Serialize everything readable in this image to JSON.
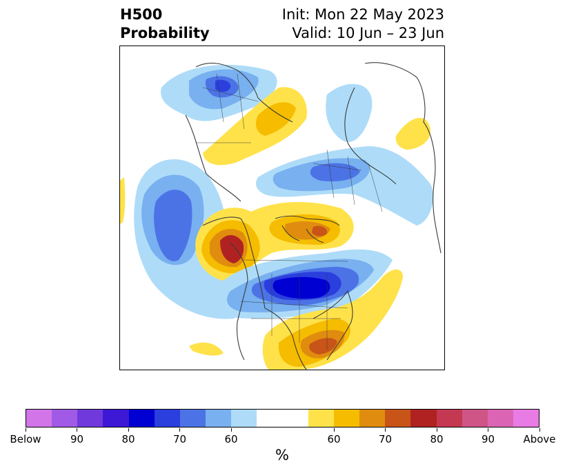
{
  "title": {
    "line1_left": "H500",
    "line2_left": "Probability",
    "line1_right": "Init: Mon 22 May 2023",
    "line2_right": "Valid: 10 Jun – 23 Jun"
  },
  "colorbar": {
    "unit": "%",
    "colors": [
      "#d275e8",
      "#a05ae6",
      "#7039dc",
      "#3d19d6",
      "#0000d2",
      "#2a3fdd",
      "#4c73e6",
      "#78b0f0",
      "#aedcf8",
      "#ffffff",
      "#ffffff",
      "#ffe24a",
      "#f5bc00",
      "#e08c0f",
      "#c85418",
      "#b02222",
      "#c43852",
      "#cf5587",
      "#dc64b4",
      "#e97be4"
    ],
    "tick_labels": [
      "Below",
      "90",
      "80",
      "70",
      "60",
      "60",
      "70",
      "80",
      "90",
      "Above"
    ]
  },
  "map": {
    "colors": {
      "light_blue": "#aedcf8",
      "mid_blue": "#78b0f0",
      "blue": "#4c73e6",
      "deep_blue": "#2a3fdd",
      "dark_blue": "#0000d2",
      "yellow": "#ffe24a",
      "gold": "#f5bc00",
      "orange": "#e08c0f",
      "rust": "#c85418",
      "red": "#b02222",
      "coast": "#3a3a3a"
    }
  }
}
